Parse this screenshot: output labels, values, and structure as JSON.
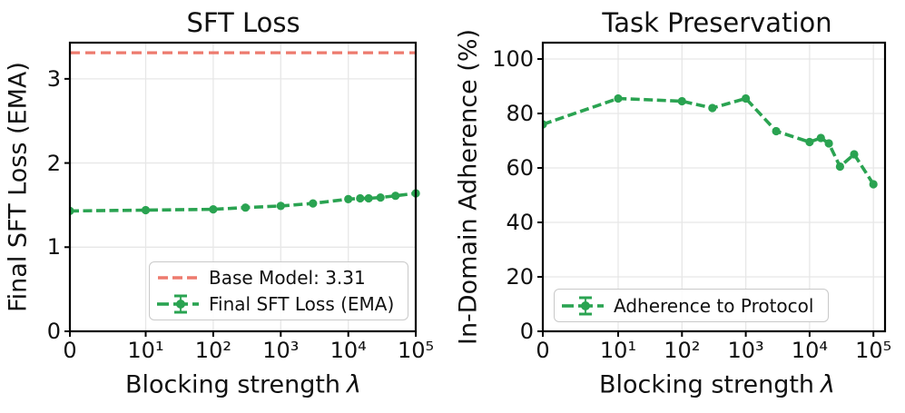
{
  "colors": {
    "green": "#2AA351",
    "red": "#ED7A6E",
    "grid": "#E7E7E7",
    "axis": "#000000",
    "legend_border": "#C9C9C9",
    "background": "#FFFFFF"
  },
  "chart_data": [
    {
      "type": "line",
      "title": "SFT Loss",
      "xlabel": "Blocking strength",
      "xlabel_symbol": "λ",
      "ylabel": "Final SFT Loss (EMA)",
      "xscale": "symlog",
      "xlim": [
        0,
        100000
      ],
      "ylim": [
        0,
        3.43
      ],
      "grid": true,
      "x_tick_values": [
        0,
        10,
        100,
        1000,
        10000,
        100000
      ],
      "x_tick_labels": [
        "0",
        "10¹",
        "10²",
        "10³",
        "10⁴",
        "10⁵"
      ],
      "y_tick_values": [
        0,
        1,
        2,
        3
      ],
      "y_tick_labels": [
        "0",
        "1",
        "2",
        "3"
      ],
      "x": [
        0,
        10,
        100,
        300,
        1000,
        3000,
        10000,
        15000,
        20000,
        30000,
        50000,
        100000
      ],
      "series": [
        {
          "name": "Base Model: 3.31",
          "type": "hline",
          "value": 3.31,
          "color_key": "red",
          "style": "dashed"
        },
        {
          "name": "Final SFT Loss (EMA)",
          "type": "line_markers",
          "color_key": "green",
          "style": "dashed",
          "values": [
            1.43,
            1.44,
            1.45,
            1.47,
            1.49,
            1.52,
            1.57,
            1.58,
            1.58,
            1.59,
            1.61,
            1.64
          ]
        }
      ],
      "legend": {
        "position": "lower right",
        "entries": [
          "Base Model: 3.31",
          "Final SFT Loss (EMA)"
        ]
      }
    },
    {
      "type": "line",
      "title": "Task Preservation",
      "xlabel": "Blocking strength",
      "xlabel_symbol": "λ",
      "ylabel": "In-Domain Adherence (%)",
      "xscale": "symlog",
      "xlim": [
        0,
        100000
      ],
      "ylim": [
        0,
        106
      ],
      "grid": true,
      "x_tick_values": [
        0,
        10,
        100,
        1000,
        10000,
        100000
      ],
      "x_tick_labels": [
        "0",
        "10¹",
        "10²",
        "10³",
        "10⁴",
        "10⁵"
      ],
      "y_tick_values": [
        0,
        20,
        40,
        60,
        80,
        100
      ],
      "y_tick_labels": [
        "0",
        "20",
        "40",
        "60",
        "80",
        "100"
      ],
      "x": [
        0,
        10,
        100,
        300,
        1000,
        3000,
        10000,
        15000,
        20000,
        30000,
        50000,
        100000
      ],
      "series": [
        {
          "name": "Adherence to Protocol",
          "type": "line_markers",
          "color_key": "green",
          "style": "dashed",
          "values": [
            76,
            85.5,
            84.5,
            82,
            85.5,
            73.5,
            69.5,
            71,
            69,
            60.5,
            65,
            54
          ]
        }
      ],
      "legend": {
        "position": "lower left",
        "entries": [
          "Adherence to Protocol"
        ]
      }
    }
  ]
}
